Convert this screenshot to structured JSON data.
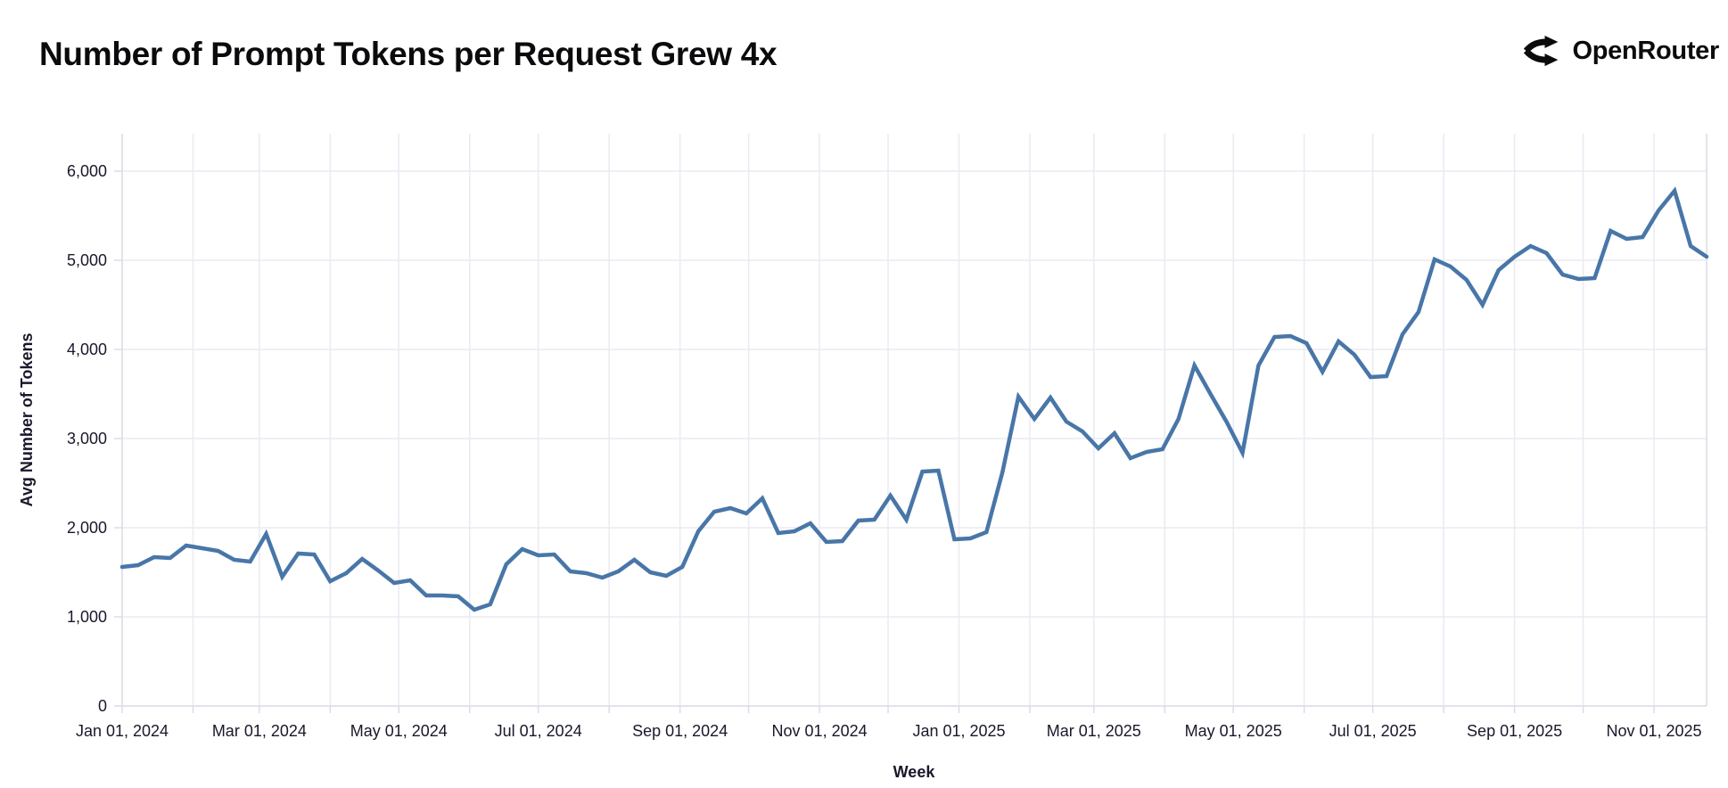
{
  "header": {
    "title": "Number of Prompt Tokens per Request Grew 4x",
    "brand": "OpenRouter"
  },
  "chart_data": {
    "type": "line",
    "title": "Number of Prompt Tokens per Request Grew 4x",
    "xlabel": "Week",
    "ylabel": "Avg Number of Tokens",
    "ylim": [
      0,
      6000
    ],
    "grid": true,
    "legend": false,
    "line_color": "#4876a8",
    "y_ticks": [
      {
        "label": "0",
        "value": 0
      },
      {
        "label": "1,000",
        "value": 1000
      },
      {
        "label": "2,000",
        "value": 2000
      },
      {
        "label": "3,000",
        "value": 3000
      },
      {
        "label": "4,000",
        "value": 4000
      },
      {
        "label": "5,000",
        "value": 5000
      },
      {
        "label": "6,000",
        "value": 6000
      }
    ],
    "x_ticks": [
      {
        "label": "Jan 01, 2024",
        "date": "2024-01-01"
      },
      {
        "label": "Mar 01, 2024",
        "date": "2024-03-01"
      },
      {
        "label": "May 01, 2024",
        "date": "2024-05-01"
      },
      {
        "label": "Jul 01, 2024",
        "date": "2024-07-01"
      },
      {
        "label": "Sep 01, 2024",
        "date": "2024-09-01"
      },
      {
        "label": "Nov 01, 2024",
        "date": "2024-11-01"
      },
      {
        "label": "Jan 01, 2025",
        "date": "2025-01-01"
      },
      {
        "label": "Mar 01, 2025",
        "date": "2025-03-01"
      },
      {
        "label": "May 01, 2025",
        "date": "2025-05-01"
      },
      {
        "label": "Jul 01, 2025",
        "date": "2025-07-01"
      },
      {
        "label": "Sep 01, 2025",
        "date": "2025-09-01"
      },
      {
        "label": "Nov 01, 2025",
        "date": "2025-11-01"
      }
    ],
    "x": [
      "2024-01-01",
      "2024-01-08",
      "2024-01-15",
      "2024-01-22",
      "2024-01-29",
      "2024-02-05",
      "2024-02-12",
      "2024-02-19",
      "2024-02-26",
      "2024-03-04",
      "2024-03-11",
      "2024-03-18",
      "2024-03-25",
      "2024-04-01",
      "2024-04-08",
      "2024-04-15",
      "2024-04-22",
      "2024-04-29",
      "2024-05-06",
      "2024-05-13",
      "2024-05-20",
      "2024-05-27",
      "2024-06-03",
      "2024-06-10",
      "2024-06-17",
      "2024-06-24",
      "2024-07-01",
      "2024-07-08",
      "2024-07-15",
      "2024-07-22",
      "2024-07-29",
      "2024-08-05",
      "2024-08-12",
      "2024-08-19",
      "2024-08-26",
      "2024-09-02",
      "2024-09-09",
      "2024-09-16",
      "2024-09-23",
      "2024-09-30",
      "2024-10-07",
      "2024-10-14",
      "2024-10-21",
      "2024-10-28",
      "2024-11-04",
      "2024-11-11",
      "2024-11-18",
      "2024-11-25",
      "2024-12-02",
      "2024-12-09",
      "2024-12-16",
      "2024-12-23",
      "2024-12-30",
      "2025-01-06",
      "2025-01-13",
      "2025-01-20",
      "2025-01-27",
      "2025-02-03",
      "2025-02-10",
      "2025-02-17",
      "2025-02-24",
      "2025-03-03",
      "2025-03-10",
      "2025-03-17",
      "2025-03-24",
      "2025-03-31",
      "2025-04-07",
      "2025-04-14",
      "2025-04-21",
      "2025-04-28",
      "2025-05-05",
      "2025-05-12",
      "2025-05-19",
      "2025-05-26",
      "2025-06-02",
      "2025-06-09",
      "2025-06-16",
      "2025-06-23",
      "2025-06-30",
      "2025-07-07",
      "2025-07-14",
      "2025-07-21",
      "2025-07-28",
      "2025-08-04",
      "2025-08-11",
      "2025-08-18",
      "2025-08-25",
      "2025-09-01",
      "2025-09-08",
      "2025-09-15",
      "2025-09-22",
      "2025-09-29",
      "2025-10-06",
      "2025-10-13",
      "2025-10-20",
      "2025-10-27",
      "2025-11-03",
      "2025-11-10",
      "2025-11-17",
      "2025-11-24"
    ],
    "values": [
      1560,
      1580,
      1670,
      1660,
      1800,
      1770,
      1740,
      1640,
      1620,
      1930,
      1450,
      1710,
      1700,
      1400,
      1490,
      1650,
      1520,
      1380,
      1410,
      1240,
      1240,
      1230,
      1080,
      1140,
      1590,
      1760,
      1690,
      1700,
      1510,
      1490,
      1440,
      1510,
      1640,
      1500,
      1460,
      1560,
      1960,
      2180,
      2220,
      2160,
      2330,
      1940,
      1960,
      2050,
      1840,
      1850,
      2080,
      2090,
      2360,
      2090,
      2630,
      2640,
      1870,
      1880,
      1950,
      2620,
      3470,
      3220,
      3460,
      3190,
      3080,
      2890,
      3060,
      2780,
      2850,
      2880,
      3220,
      3820,
      3500,
      3190,
      2840,
      3820,
      4140,
      4150,
      4070,
      3750,
      4090,
      3940,
      3690,
      3700,
      4170,
      4420,
      5010,
      4930,
      4780,
      4500,
      4890,
      5040,
      5160,
      5080,
      4840,
      4790,
      4800,
      5330,
      5240,
      5260,
      5560,
      5780,
      5160,
      5040
    ]
  }
}
